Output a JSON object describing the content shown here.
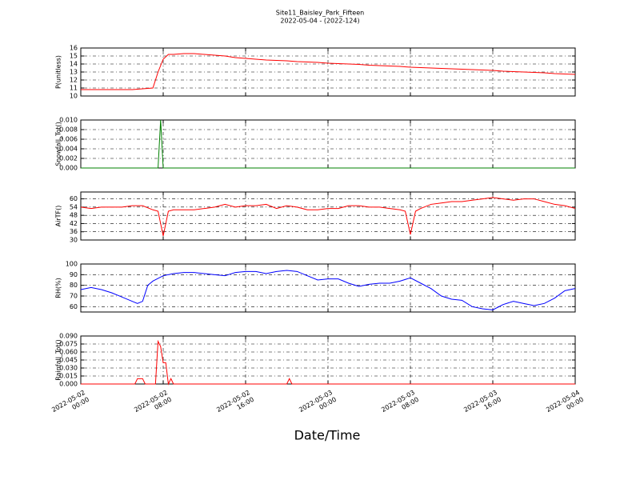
{
  "chart_data": [
    {
      "type": "line",
      "title": "Site11_Baisley_Park_Fifteen",
      "subtitle": "2022-05-04 - (2022-124)",
      "ylabel": "P(unitless)",
      "color": "#ff0000",
      "ylim": [
        10,
        16
      ],
      "yticks": [
        10,
        11,
        12,
        13,
        14,
        15,
        16
      ],
      "grid": true,
      "x": [
        "2022-05-02 00:00",
        "2022-05-02 01:00",
        "2022-05-02 02:00",
        "2022-05-02 03:00",
        "2022-05-02 04:00",
        "2022-05-02 05:00",
        "2022-05-02 06:00",
        "2022-05-02 07:00",
        "2022-05-02 07:30",
        "2022-05-02 08:00",
        "2022-05-02 08:30",
        "2022-05-02 09:00",
        "2022-05-02 10:00",
        "2022-05-02 11:00",
        "2022-05-02 12:00",
        "2022-05-02 13:00",
        "2022-05-02 14:00",
        "2022-05-02 15:00",
        "2022-05-02 16:00",
        "2022-05-02 17:00",
        "2022-05-02 18:00",
        "2022-05-02 19:00",
        "2022-05-02 20:00",
        "2022-05-02 21:00",
        "2022-05-02 22:00",
        "2022-05-02 23:00",
        "2022-05-03 00:00",
        "2022-05-03 01:00",
        "2022-05-03 02:00",
        "2022-05-03 03:00",
        "2022-05-03 04:00",
        "2022-05-03 05:00",
        "2022-05-03 06:00",
        "2022-05-03 07:00",
        "2022-05-03 08:00",
        "2022-05-03 09:00",
        "2022-05-03 10:00",
        "2022-05-03 11:00",
        "2022-05-03 12:00",
        "2022-05-03 13:00",
        "2022-05-03 14:00",
        "2022-05-03 15:00",
        "2022-05-03 16:00",
        "2022-05-03 17:00",
        "2022-05-03 18:00",
        "2022-05-03 19:00",
        "2022-05-03 20:00",
        "2022-05-03 21:00",
        "2022-05-03 22:00",
        "2022-05-03 23:00",
        "2022-05-04 00:00"
      ],
      "values": [
        10.8,
        10.8,
        10.8,
        10.8,
        10.8,
        10.8,
        10.9,
        11.0,
        13.0,
        14.6,
        15.2,
        15.2,
        15.3,
        15.3,
        15.2,
        15.1,
        15.0,
        14.8,
        14.7,
        14.6,
        14.5,
        14.45,
        14.4,
        14.3,
        14.25,
        14.2,
        14.1,
        14.05,
        14.0,
        13.95,
        13.85,
        13.8,
        13.75,
        13.7,
        13.6,
        13.55,
        13.5,
        13.45,
        13.4,
        13.35,
        13.3,
        13.25,
        13.2,
        13.1,
        13.05,
        13.0,
        12.95,
        12.9,
        12.8,
        12.75,
        12.7
      ]
    },
    {
      "type": "line",
      "ylabel": "Snowfall_Tot()",
      "color": "#008000",
      "ylim": [
        0,
        0.01
      ],
      "yticks": [
        {
          "value": 0,
          "label": "0.000"
        },
        {
          "value": 0.002,
          "label": "0.002"
        },
        {
          "value": 0.004,
          "label": "0.004"
        },
        {
          "value": 0.006,
          "label": "0.006"
        },
        {
          "value": 0.008,
          "label": "0.008"
        },
        {
          "value": 0.01,
          "label": "0.010"
        }
      ],
      "grid": true,
      "x": [
        "2022-05-02 00:00",
        "2022-05-02 07:30",
        "2022-05-02 07:45",
        "2022-05-02 08:00",
        "2022-05-04 00:00"
      ],
      "values": [
        0,
        0,
        0.01,
        0,
        0
      ]
    },
    {
      "type": "line",
      "ylabel": "AirTF()",
      "color": "#ff0000",
      "ylim": [
        30,
        65
      ],
      "yticks": [
        30,
        36,
        42,
        48,
        54,
        60
      ],
      "grid": true,
      "x": [
        "2022-05-02 00:00",
        "2022-05-02 01:00",
        "2022-05-02 02:00",
        "2022-05-02 03:00",
        "2022-05-02 04:00",
        "2022-05-02 05:00",
        "2022-05-02 06:00",
        "2022-05-02 07:00",
        "2022-05-02 07:30",
        "2022-05-02 08:00",
        "2022-05-02 08:30",
        "2022-05-02 09:00",
        "2022-05-02 10:00",
        "2022-05-02 11:00",
        "2022-05-02 12:00",
        "2022-05-02 13:00",
        "2022-05-02 14:00",
        "2022-05-02 15:00",
        "2022-05-02 16:00",
        "2022-05-02 17:00",
        "2022-05-02 18:00",
        "2022-05-02 19:00",
        "2022-05-02 20:00",
        "2022-05-02 21:00",
        "2022-05-02 22:00",
        "2022-05-02 23:00",
        "2022-05-03 00:00",
        "2022-05-03 01:00",
        "2022-05-03 02:00",
        "2022-05-03 03:00",
        "2022-05-03 04:00",
        "2022-05-03 05:00",
        "2022-05-03 06:00",
        "2022-05-03 07:00",
        "2022-05-03 07:30",
        "2022-05-03 08:00",
        "2022-05-03 08:30",
        "2022-05-03 09:00",
        "2022-05-03 10:00",
        "2022-05-03 11:00",
        "2022-05-03 12:00",
        "2022-05-03 13:00",
        "2022-05-03 14:00",
        "2022-05-03 15:00",
        "2022-05-03 16:00",
        "2022-05-03 17:00",
        "2022-05-03 18:00",
        "2022-05-03 19:00",
        "2022-05-03 20:00",
        "2022-05-03 21:00",
        "2022-05-03 22:00",
        "2022-05-03 23:00",
        "2022-05-04 00:00"
      ],
      "values": [
        54,
        53,
        54,
        54,
        54,
        55,
        55,
        52,
        51,
        33,
        51,
        52,
        52,
        52,
        53,
        54,
        56,
        54,
        55,
        55,
        56,
        53,
        55,
        54,
        52,
        52,
        53,
        53,
        55,
        55,
        54,
        54,
        53,
        52,
        51,
        34,
        51,
        53,
        56,
        57,
        58,
        58,
        59,
        60,
        61,
        60,
        59,
        60,
        60,
        58,
        56,
        55,
        53
      ]
    },
    {
      "type": "line",
      "ylabel": "RH(%)",
      "color": "#0000ff",
      "ylim": [
        55,
        100
      ],
      "yticks": [
        60,
        70,
        80,
        90,
        100
      ],
      "grid": true,
      "x": [
        "2022-05-02 00:00",
        "2022-05-02 01:00",
        "2022-05-02 02:00",
        "2022-05-02 03:00",
        "2022-05-02 04:00",
        "2022-05-02 05:00",
        "2022-05-02 05:30",
        "2022-05-02 06:00",
        "2022-05-02 06:30",
        "2022-05-02 07:00",
        "2022-05-02 08:00",
        "2022-05-02 09:00",
        "2022-05-02 10:00",
        "2022-05-02 11:00",
        "2022-05-02 12:00",
        "2022-05-02 13:00",
        "2022-05-02 14:00",
        "2022-05-02 15:00",
        "2022-05-02 16:00",
        "2022-05-02 17:00",
        "2022-05-02 18:00",
        "2022-05-02 19:00",
        "2022-05-02 20:00",
        "2022-05-02 21:00",
        "2022-05-02 22:00",
        "2022-05-02 23:00",
        "2022-05-03 00:00",
        "2022-05-03 01:00",
        "2022-05-03 02:00",
        "2022-05-03 03:00",
        "2022-05-03 04:00",
        "2022-05-03 05:00",
        "2022-05-03 06:00",
        "2022-05-03 07:00",
        "2022-05-03 08:00",
        "2022-05-03 09:00",
        "2022-05-03 10:00",
        "2022-05-03 11:00",
        "2022-05-03 12:00",
        "2022-05-03 13:00",
        "2022-05-03 14:00",
        "2022-05-03 15:00",
        "2022-05-03 16:00",
        "2022-05-03 17:00",
        "2022-05-03 18:00",
        "2022-05-03 19:00",
        "2022-05-03 20:00",
        "2022-05-03 21:00",
        "2022-05-03 22:00",
        "2022-05-03 23:00",
        "2022-05-04 00:00"
      ],
      "values": [
        76,
        78,
        76,
        73,
        69,
        65,
        63,
        65,
        80,
        84,
        89,
        91,
        92,
        92,
        91,
        90,
        89,
        92,
        93,
        93,
        91,
        93,
        94,
        93,
        89,
        85,
        86,
        86,
        82,
        79,
        81,
        82,
        82,
        84,
        87,
        82,
        77,
        70,
        67,
        66,
        60,
        58,
        57,
        62,
        65,
        63,
        61,
        63,
        68,
        75,
        77
      ]
    },
    {
      "type": "line",
      "ylabel": "Rainfall_Tot()",
      "xlabel": "Date/Time",
      "color": "#ff0000",
      "ylim": [
        0,
        0.09
      ],
      "yticks": [
        {
          "value": 0,
          "label": "0.000"
        },
        {
          "value": 0.015,
          "label": "0.015"
        },
        {
          "value": 0.03,
          "label": "0.030"
        },
        {
          "value": 0.045,
          "label": "0.045"
        },
        {
          "value": 0.06,
          "label": "0.060"
        },
        {
          "value": 0.075,
          "label": "0.075"
        },
        {
          "value": 0.09,
          "label": "0.090"
        }
      ],
      "grid": true,
      "xlim": [
        "2022-05-02 00:00",
        "2022-05-04 00:00"
      ],
      "xticks": [
        {
          "value": "2022-05-02 00:00",
          "label": "2022-05-02\n00:00"
        },
        {
          "value": "2022-05-02 08:00",
          "label": "2022-05-02\n08:00"
        },
        {
          "value": "2022-05-02 16:00",
          "label": "2022-05-02\n16:00"
        },
        {
          "value": "2022-05-03 00:00",
          "label": "2022-05-03\n00:00"
        },
        {
          "value": "2022-05-03 08:00",
          "label": "2022-05-03\n08:00"
        },
        {
          "value": "2022-05-03 16:00",
          "label": "2022-05-03\n16:00"
        },
        {
          "value": "2022-05-04 00:00",
          "label": "2022-05-04\n00:00"
        }
      ],
      "x": [
        "2022-05-02 00:00",
        "2022-05-02 05:15",
        "2022-05-02 05:30",
        "2022-05-02 06:00",
        "2022-05-02 06:15",
        "2022-05-02 07:15",
        "2022-05-02 07:30",
        "2022-05-02 07:45",
        "2022-05-02 08:00",
        "2022-05-02 08:15",
        "2022-05-02 08:30",
        "2022-05-02 08:45",
        "2022-05-02 09:00",
        "2022-05-02 20:00",
        "2022-05-02 20:15",
        "2022-05-02 20:30",
        "2022-05-04 00:00"
      ],
      "values": [
        0,
        0,
        0.01,
        0.01,
        0,
        0,
        0.08,
        0.07,
        0.04,
        0.04,
        0,
        0.01,
        0,
        0,
        0.01,
        0,
        0
      ]
    }
  ]
}
